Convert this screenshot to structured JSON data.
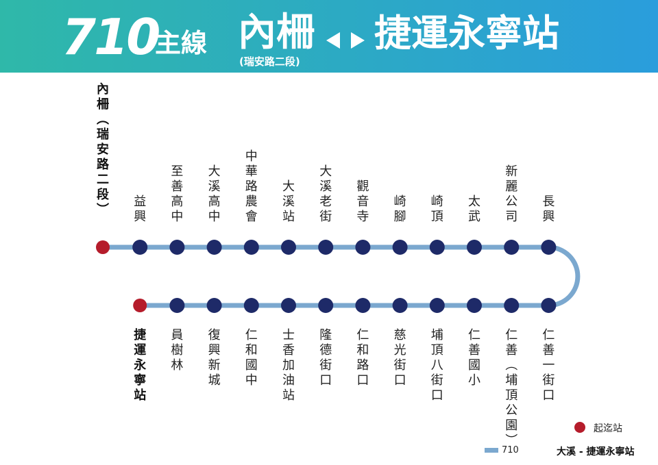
{
  "header": {
    "route_number": "710",
    "route_type": "主線",
    "origin": "內柵",
    "origin_sub": "(瑞安路二段)",
    "destination": "捷運永寧站"
  },
  "colors": {
    "header_start": "#2fb8a9",
    "header_end": "#2a9ddc",
    "route_line": "#7ba8cf",
    "stop": "#1e2a68",
    "terminal": "#b51c2b"
  },
  "top_stops": [
    {
      "name": "內柵(瑞安路二段)",
      "terminal": true
    },
    {
      "name": "益興"
    },
    {
      "name": "至善高中"
    },
    {
      "name": "大溪高中"
    },
    {
      "name": "中華路農會"
    },
    {
      "name": "大溪站"
    },
    {
      "name": "大溪老街"
    },
    {
      "name": "觀音寺"
    },
    {
      "name": "崎腳"
    },
    {
      "name": "崎頂"
    },
    {
      "name": "太武"
    },
    {
      "name": "新麗公司"
    },
    {
      "name": "長興"
    }
  ],
  "bottom_stops": [
    {
      "name": "捷運永寧站",
      "terminal": true
    },
    {
      "name": "員樹林"
    },
    {
      "name": "復興新城"
    },
    {
      "name": "仁和國中"
    },
    {
      "name": "士香加油站"
    },
    {
      "name": "隆德街口"
    },
    {
      "name": "仁和路口"
    },
    {
      "name": "慈光街口"
    },
    {
      "name": "埔頂八街口"
    },
    {
      "name": "仁善國小"
    },
    {
      "name": "仁善(埔頂公園)"
    },
    {
      "name": "仁善一街口"
    }
  ],
  "legend": {
    "terminal_label": "起迄站",
    "route_label": "710"
  },
  "footer": {
    "label": "大溪 - 捷運永寧站"
  }
}
